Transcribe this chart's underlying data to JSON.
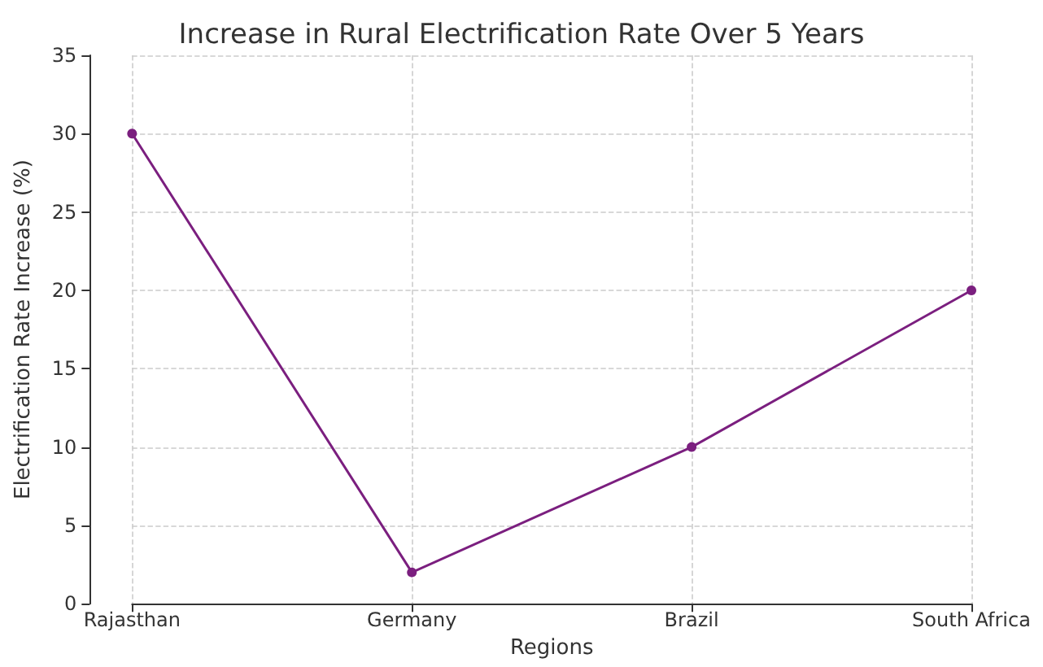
{
  "chart_data": {
    "type": "line",
    "title": "Increase in Rural Electrification Rate Over 5 Years",
    "xlabel": "Regions",
    "ylabel": "Electrification Rate Increase (%)",
    "categories": [
      "Rajasthan",
      "Germany",
      "Brazil",
      "South Africa"
    ],
    "series": [
      {
        "color": "#7b1f7f",
        "values": [
          30,
          2,
          10,
          20
        ]
      }
    ],
    "ylim": [
      0,
      35
    ],
    "yticks": [
      0,
      5,
      10,
      15,
      20,
      25,
      30,
      35
    ],
    "grid": true,
    "marker": "circle",
    "line_style": "solid"
  }
}
